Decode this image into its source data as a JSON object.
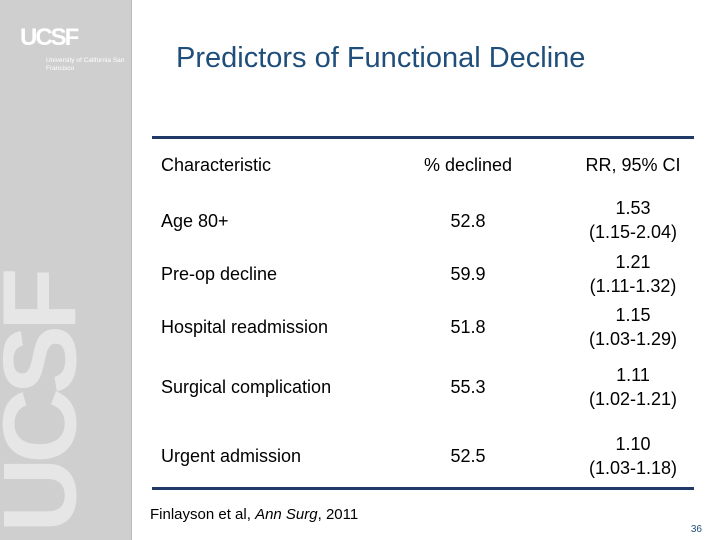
{
  "brand": {
    "logo_text": "UCSF",
    "logo_subtitle": "University of California San Francisco",
    "watermark": "UCSF"
  },
  "slide": {
    "title": "Predictors of Functional Decline",
    "page_number": "36"
  },
  "table": {
    "headers": {
      "characteristic": "Characteristic",
      "percent": "% declined",
      "rr": "RR, 95% CI"
    },
    "rows": [
      {
        "characteristic": "Age 80+",
        "percent": "52.8",
        "rr": "1.53",
        "ci": "(1.15-2.04)"
      },
      {
        "characteristic": "Pre-op decline",
        "percent": "59.9",
        "rr": "1.21",
        "ci": "(1.11-1.32)"
      },
      {
        "characteristic": "Hospital readmission",
        "percent": "51.8",
        "rr": "1.15",
        "ci": "(1.03-1.29)"
      },
      {
        "characteristic": "Surgical complication",
        "percent": "55.3",
        "rr": "1.11",
        "ci": "(1.02-1.21)"
      },
      {
        "characteristic": "Urgent admission",
        "percent": "52.5",
        "rr": "1.10",
        "ci": "(1.03-1.18)"
      }
    ]
  },
  "footnote": {
    "prefix": "Finlayson et al, ",
    "journal": "Ann Surg",
    "suffix": ", 2011"
  },
  "colors": {
    "title": "#1f4e7a",
    "rule": "#1f3a66",
    "sidebar": "#cfcfcf"
  }
}
